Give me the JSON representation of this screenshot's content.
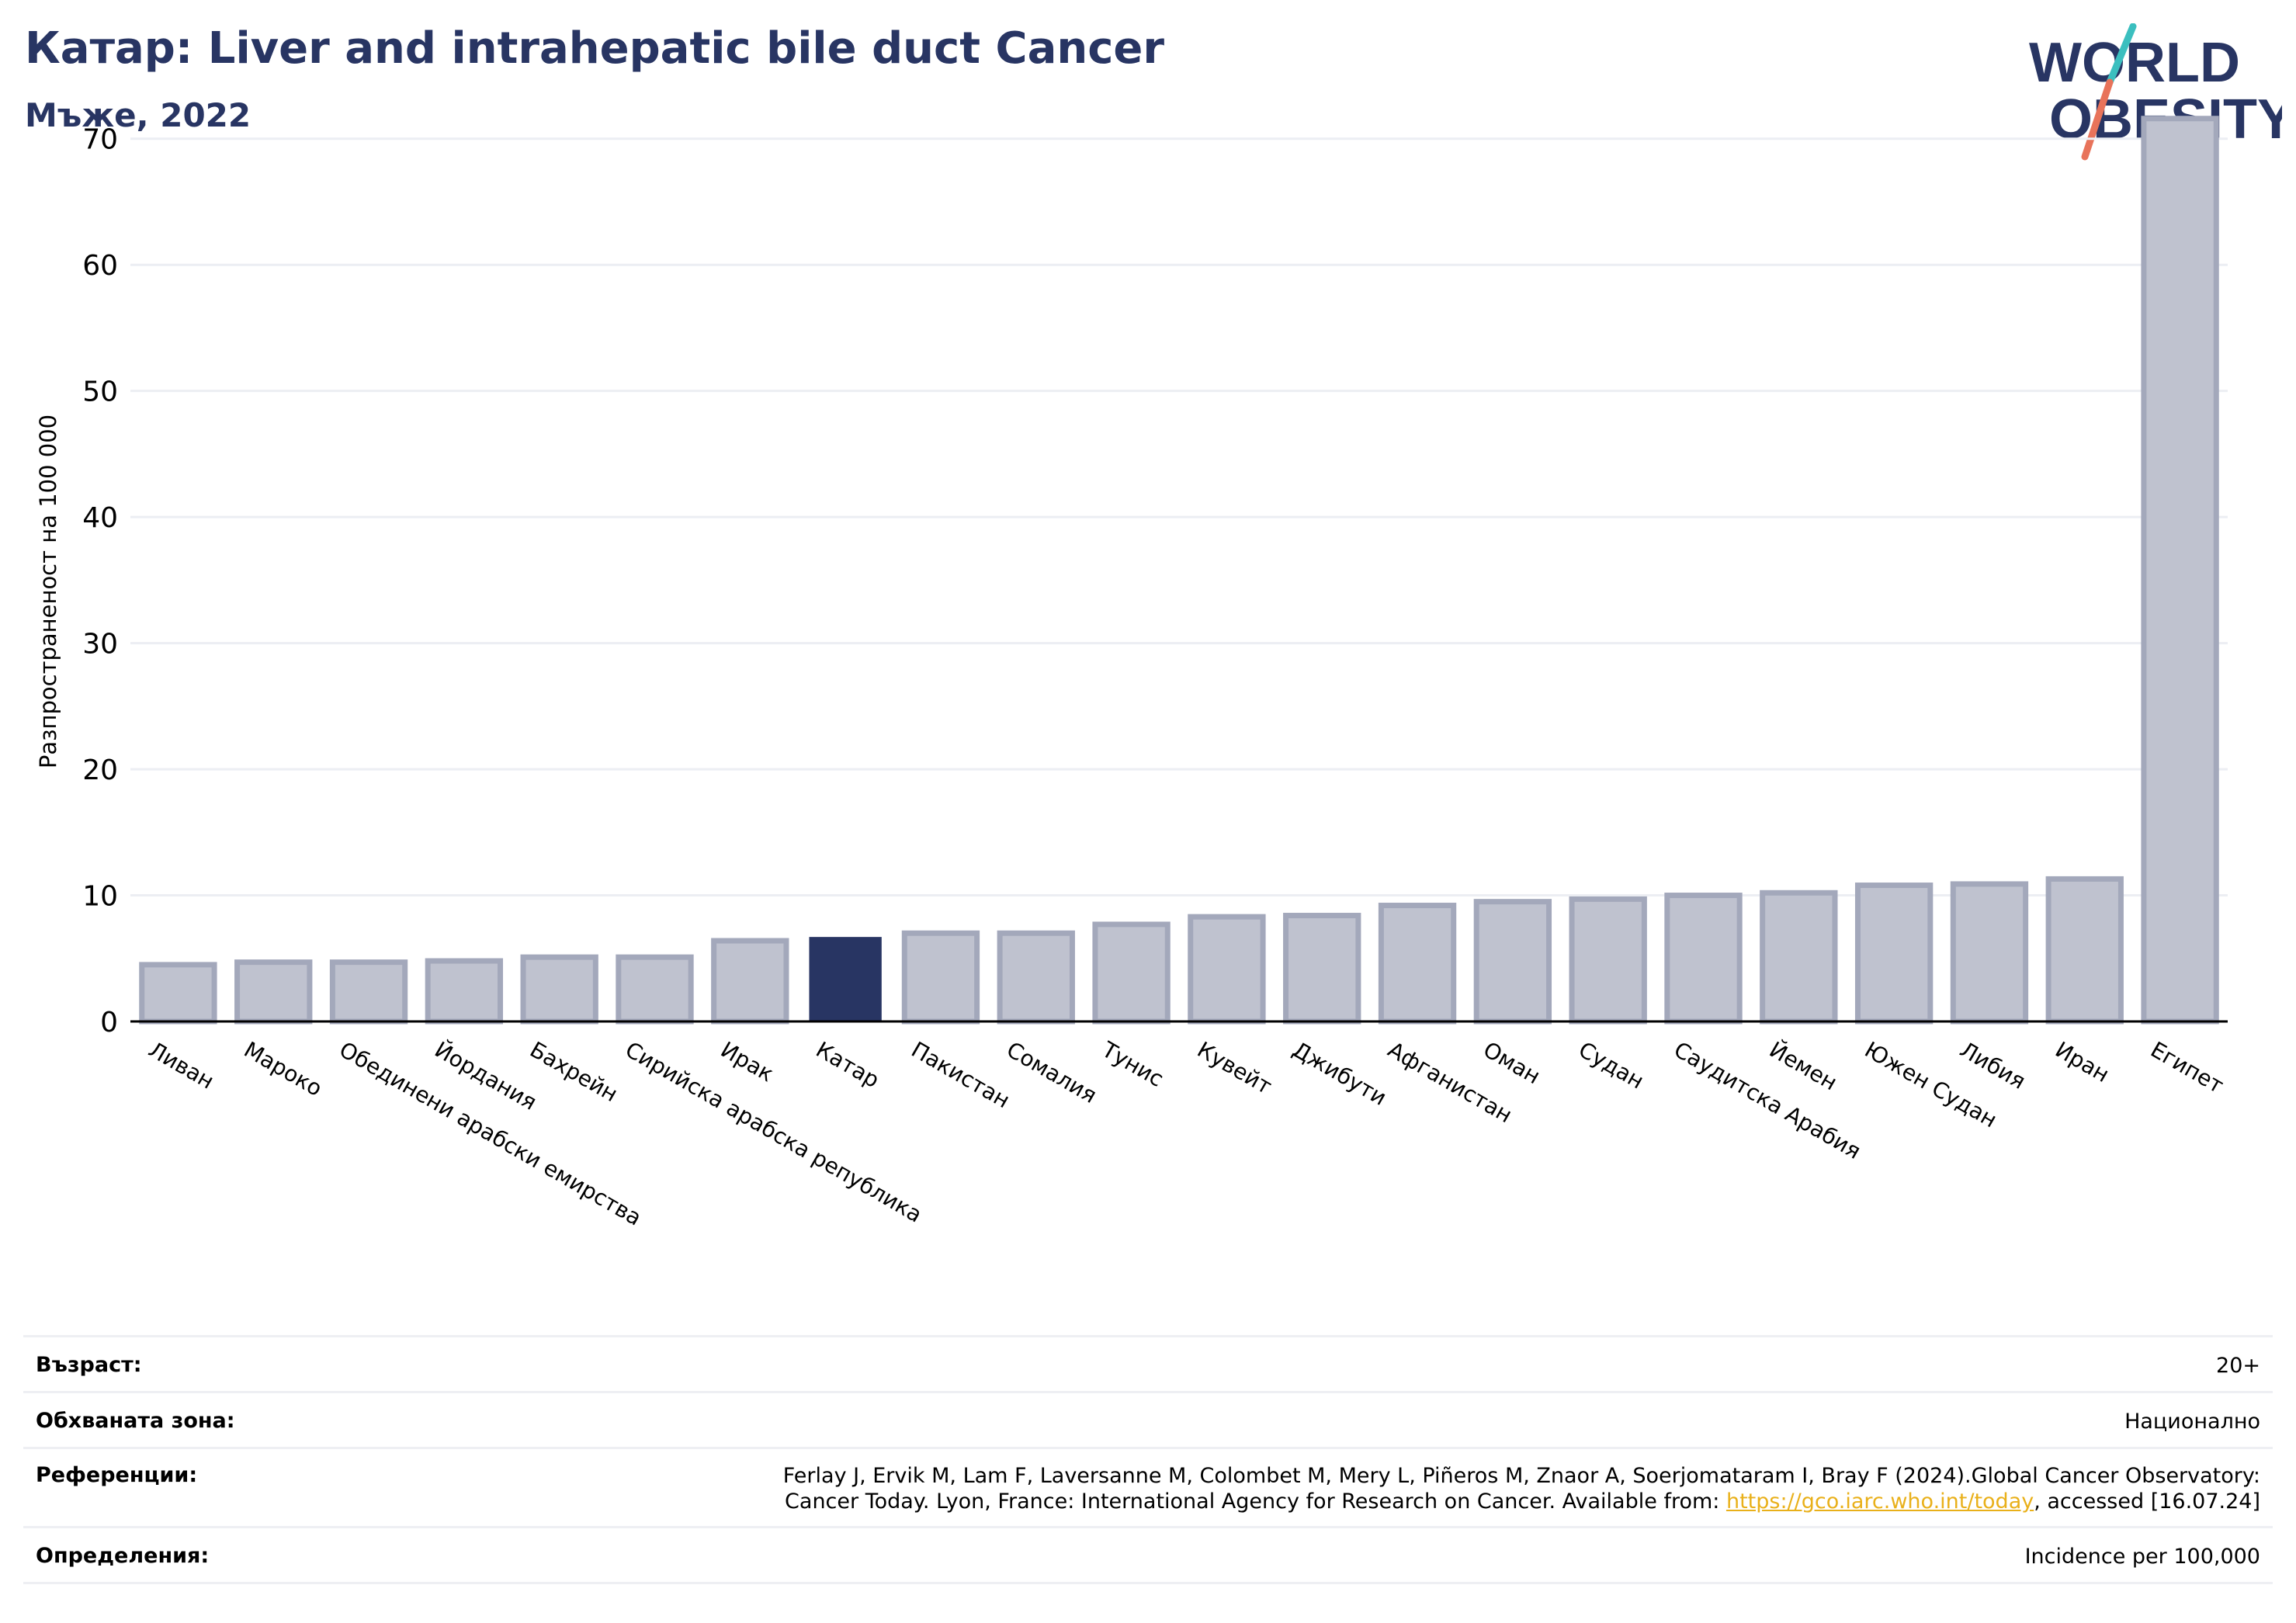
{
  "header": {
    "title": "Катар: Liver and intrahepatic bile duct Cancer",
    "subtitle": "Мъже, 2022"
  },
  "logo": {
    "line1": "WORLD",
    "line2": "OBESITY",
    "colors": {
      "text": "#283563",
      "slash_top": "#3bbfbf",
      "slash_bottom": "#e8735a"
    }
  },
  "colors": {
    "highlight": "#283563",
    "bar": "#bfc2cf",
    "bar_stroke": "#a3a8bb",
    "grid": "#eceef3"
  },
  "chart_data": {
    "type": "bar",
    "ylabel": "Разпространеност  на 100 000",
    "ylim": [
      0,
      73
    ],
    "yticks": [
      0,
      10,
      20,
      30,
      40,
      50,
      60,
      70
    ],
    "grid": true,
    "highlight": "Катар",
    "categories": [
      "Ливан",
      "Мароко",
      "Обединени арабски емирства",
      "Йордания",
      "Бахрейн",
      "Сирийска арабска република",
      "Ирак",
      "Катар",
      "Пакистан",
      "Сомалия",
      "Тунис",
      "Кувейт",
      "Джибути",
      "Афганистан",
      "Оман",
      "Судан",
      "Саудитска Арабия",
      "Йемен",
      "Южен Судан",
      "Либия",
      "Иран",
      "Египет"
    ],
    "values": [
      4.5,
      4.7,
      4.7,
      4.8,
      5.1,
      5.1,
      6.4,
      6.7,
      7.0,
      7.0,
      7.7,
      8.3,
      8.4,
      9.2,
      9.5,
      9.7,
      10.0,
      10.2,
      10.8,
      10.9,
      11.3,
      71.6
    ]
  },
  "meta": {
    "age_label": "Възраст:",
    "age_value": "20+",
    "area_label": "Обхваната зона:",
    "area_value": "Национално",
    "ref_label": "Референции:",
    "ref_line1": "Ferlay J, Ervik M, Lam F, Laversanne M, Colombet M, Mery L, Piñeros M, Znaor A, Soerjomataram I, Bray F (2024).Global Cancer Observatory:",
    "ref_line2_pre": "Cancer Today. Lyon, France: International Agency for Research on Cancer. Available from: ",
    "ref_link": "https://gco.iarc.who.int/today",
    "ref_line2_post": ", accessed [16.07.24]",
    "def_label": "Определения:",
    "def_value": "Incidence per 100,000"
  }
}
